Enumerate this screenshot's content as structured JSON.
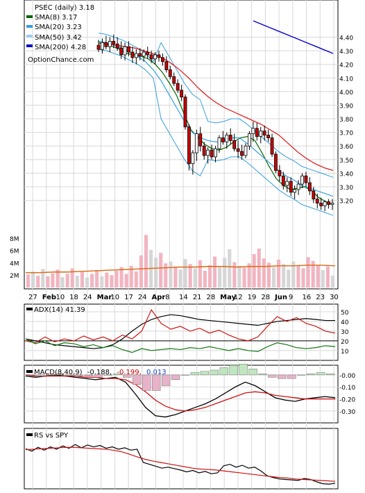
{
  "chart_data": [
    {
      "type": "candlestick",
      "title": "PSEC (daily) 3.18",
      "watermark": "OptionChance.com",
      "x_labels": [
        "27",
        "Feb",
        "10",
        "18",
        "24",
        "Mar",
        "10",
        "17",
        "24",
        "Apr",
        "8",
        "14",
        "21",
        "28",
        "May",
        "12",
        "19",
        "28",
        "Jun",
        "9",
        "16",
        "23",
        "30"
      ],
      "ylim": [
        3.05,
        4.52
      ],
      "y_ticks": [
        "4.40",
        "4.30",
        "4.20",
        "4.10",
        "4.00",
        "3.90",
        "3.80",
        "3.70",
        "3.60",
        "3.50",
        "3.40",
        "3.30",
        "3.20"
      ],
      "volume_ticks": [
        "8M",
        "6M",
        "4M",
        "2M"
      ],
      "volume_ylim": [
        0,
        10
      ],
      "legend": [
        {
          "label": "SMA(8) 3.17",
          "color": "#006600"
        },
        {
          "label": "SMA(20) 3.23",
          "color": "#33a0dd"
        },
        {
          "label": "SMA(50) 3.42",
          "color": "#dd1111"
        },
        {
          "label": "SMA(200) 4.28",
          "color": "#0000cc"
        }
      ],
      "candles": [
        {
          "o": 4.34,
          "h": 4.38,
          "l": 4.29,
          "c": 4.31
        },
        {
          "o": 4.31,
          "h": 4.39,
          "l": 4.28,
          "c": 4.36
        },
        {
          "o": 4.36,
          "h": 4.41,
          "l": 4.31,
          "c": 4.33
        },
        {
          "o": 4.33,
          "h": 4.4,
          "l": 4.29,
          "c": 4.37
        },
        {
          "o": 4.37,
          "h": 4.42,
          "l": 4.32,
          "c": 4.35
        },
        {
          "o": 4.35,
          "h": 4.4,
          "l": 4.3,
          "c": 4.32
        },
        {
          "o": 4.32,
          "h": 4.37,
          "l": 4.24,
          "c": 4.27
        },
        {
          "o": 4.27,
          "h": 4.36,
          "l": 4.23,
          "c": 4.33
        },
        {
          "o": 4.33,
          "h": 4.37,
          "l": 4.26,
          "c": 4.29
        },
        {
          "o": 4.29,
          "h": 4.33,
          "l": 4.21,
          "c": 4.25
        },
        {
          "o": 4.25,
          "h": 4.31,
          "l": 4.2,
          "c": 4.28
        },
        {
          "o": 4.28,
          "h": 4.32,
          "l": 4.23,
          "c": 4.26
        },
        {
          "o": 4.26,
          "h": 4.31,
          "l": 4.22,
          "c": 4.29
        },
        {
          "o": 4.29,
          "h": 4.33,
          "l": 4.24,
          "c": 4.27
        },
        {
          "o": 4.27,
          "h": 4.3,
          "l": 4.21,
          "c": 4.24
        },
        {
          "o": 4.24,
          "h": 4.29,
          "l": 4.2,
          "c": 4.27
        },
        {
          "o": 4.27,
          "h": 4.3,
          "l": 4.22,
          "c": 4.25
        },
        {
          "o": 4.25,
          "h": 4.28,
          "l": 4.19,
          "c": 4.22
        },
        {
          "o": 4.22,
          "h": 4.26,
          "l": 4.14,
          "c": 4.16
        },
        {
          "o": 4.16,
          "h": 4.19,
          "l": 4.09,
          "c": 4.11
        },
        {
          "o": 4.11,
          "h": 4.14,
          "l": 4.04,
          "c": 4.06
        },
        {
          "o": 4.06,
          "h": 4.09,
          "l": 3.99,
          "c": 4.01
        },
        {
          "o": 4.01,
          "h": 4.05,
          "l": 3.93,
          "c": 3.96
        },
        {
          "o": 3.96,
          "h": 3.98,
          "l": 3.72,
          "c": 3.74
        },
        {
          "o": 3.74,
          "h": 3.76,
          "l": 3.42,
          "c": 3.47
        },
        {
          "o": 3.47,
          "h": 3.57,
          "l": 3.39,
          "c": 3.55
        },
        {
          "o": 3.55,
          "h": 3.72,
          "l": 3.49,
          "c": 3.69
        },
        {
          "o": 3.69,
          "h": 3.74,
          "l": 3.56,
          "c": 3.6
        },
        {
          "o": 3.6,
          "h": 3.63,
          "l": 3.5,
          "c": 3.53
        },
        {
          "o": 3.53,
          "h": 3.59,
          "l": 3.47,
          "c": 3.57
        },
        {
          "o": 3.57,
          "h": 3.61,
          "l": 3.5,
          "c": 3.52
        },
        {
          "o": 3.52,
          "h": 3.6,
          "l": 3.48,
          "c": 3.58
        },
        {
          "o": 3.58,
          "h": 3.68,
          "l": 3.55,
          "c": 3.66
        },
        {
          "o": 3.66,
          "h": 3.71,
          "l": 3.61,
          "c": 3.63
        },
        {
          "o": 3.63,
          "h": 3.7,
          "l": 3.58,
          "c": 3.68
        },
        {
          "o": 3.68,
          "h": 3.73,
          "l": 3.61,
          "c": 3.64
        },
        {
          "o": 3.64,
          "h": 3.69,
          "l": 3.56,
          "c": 3.58
        },
        {
          "o": 3.58,
          "h": 3.64,
          "l": 3.51,
          "c": 3.56
        },
        {
          "o": 3.56,
          "h": 3.61,
          "l": 3.5,
          "c": 3.53
        },
        {
          "o": 3.53,
          "h": 3.62,
          "l": 3.51,
          "c": 3.6
        },
        {
          "o": 3.6,
          "h": 3.71,
          "l": 3.57,
          "c": 3.69
        },
        {
          "o": 3.69,
          "h": 3.78,
          "l": 3.63,
          "c": 3.73
        },
        {
          "o": 3.73,
          "h": 3.77,
          "l": 3.64,
          "c": 3.67
        },
        {
          "o": 3.67,
          "h": 3.74,
          "l": 3.62,
          "c": 3.71
        },
        {
          "o": 3.71,
          "h": 3.75,
          "l": 3.64,
          "c": 3.68
        },
        {
          "o": 3.68,
          "h": 3.72,
          "l": 3.63,
          "c": 3.66
        },
        {
          "o": 3.66,
          "h": 3.69,
          "l": 3.52,
          "c": 3.54
        },
        {
          "o": 3.54,
          "h": 3.56,
          "l": 3.4,
          "c": 3.42
        },
        {
          "o": 3.42,
          "h": 3.46,
          "l": 3.34,
          "c": 3.38
        },
        {
          "o": 3.38,
          "h": 3.41,
          "l": 3.28,
          "c": 3.31
        },
        {
          "o": 3.31,
          "h": 3.37,
          "l": 3.26,
          "c": 3.34
        },
        {
          "o": 3.34,
          "h": 3.37,
          "l": 3.23,
          "c": 3.26
        },
        {
          "o": 3.26,
          "h": 3.31,
          "l": 3.21,
          "c": 3.28
        },
        {
          "o": 3.28,
          "h": 3.35,
          "l": 3.24,
          "c": 3.32
        },
        {
          "o": 3.32,
          "h": 3.4,
          "l": 3.29,
          "c": 3.38
        },
        {
          "o": 3.38,
          "h": 3.41,
          "l": 3.3,
          "c": 3.33
        },
        {
          "o": 3.33,
          "h": 3.37,
          "l": 3.24,
          "c": 3.27
        },
        {
          "o": 3.27,
          "h": 3.3,
          "l": 3.18,
          "c": 3.21
        },
        {
          "o": 3.21,
          "h": 3.25,
          "l": 3.14,
          "c": 3.18
        },
        {
          "o": 3.18,
          "h": 3.22,
          "l": 3.13,
          "c": 3.16
        },
        {
          "o": 3.16,
          "h": 3.2,
          "l": 3.12,
          "c": 3.19
        },
        {
          "o": 3.19,
          "h": 3.21,
          "l": 3.14,
          "c": 3.17
        },
        {
          "o": 3.17,
          "h": 3.21,
          "l": 3.13,
          "c": 3.18
        }
      ],
      "volume_millions": [
        2.1,
        2.6,
        1.9,
        3.0,
        1.8,
        2.3,
        2.9,
        1.7,
        2.2,
        3.1,
        1.9,
        2.5,
        1.6,
        2.2,
        2.8,
        1.8,
        2.4,
        2.0,
        2.7,
        3.3,
        2.2,
        3.5,
        2.6,
        5.2,
        8.5,
        6.1,
        4.8,
        5.6,
        3.9,
        4.2,
        3.4,
        2.9,
        4.6,
        3.8,
        3.1,
        4.4,
        2.7,
        3.6,
        5.0,
        3.3,
        4.8,
        6.2,
        4.1,
        3.5,
        3.2,
        3.9,
        5.4,
        6.3,
        4.7,
        4.0,
        3.3,
        4.5,
        3.8,
        2.9,
        4.2,
        3.6,
        3.1,
        4.9,
        4.3,
        3.6,
        2.8,
        3.4,
        1.9
      ],
      "volume_avg_millions": [
        2.4,
        2.4,
        2.5,
        2.5,
        2.6,
        2.7,
        2.8,
        2.9,
        3.0,
        3.1,
        3.2,
        3.3,
        3.3,
        3.4,
        3.4,
        3.3,
        3.4,
        3.4,
        3.5,
        3.5,
        3.6,
        3.6,
        3.5
      ],
      "series": [
        {
          "name": "SMA(8)",
          "color": "#006600",
          "values": [
            4.36,
            4.35,
            4.33,
            4.31,
            4.28,
            4.27,
            4.26,
            4.24,
            4.2,
            4.14,
            4.06,
            3.97,
            3.84,
            3.72,
            3.66,
            3.61,
            3.58,
            3.57,
            3.59,
            3.63,
            3.66,
            3.67,
            3.64,
            3.55,
            3.45,
            3.36,
            3.31,
            3.28,
            3.29,
            3.3,
            3.27,
            3.22,
            3.19,
            3.17
          ]
        },
        {
          "name": "SMA(20)",
          "color": "#33a0dd",
          "values": [
            4.37,
            4.36,
            4.34,
            4.32,
            4.29,
            4.26,
            4.22,
            4.16,
            4.08,
            3.98,
            3.88,
            3.78,
            3.7,
            3.66,
            3.64,
            3.63,
            3.64,
            3.66,
            3.66,
            3.62,
            3.57,
            3.52,
            3.47,
            3.42,
            3.38,
            3.35,
            3.31,
            3.29,
            3.27,
            3.25,
            3.23
          ]
        },
        {
          "name": "SMA(50)",
          "color": "#dd1111",
          "values": [
            4.35,
            4.35,
            4.34,
            4.33,
            4.32,
            4.3,
            4.28,
            4.25,
            4.21,
            4.16,
            4.1,
            4.03,
            3.97,
            3.92,
            3.88,
            3.85,
            3.82,
            3.79,
            3.76,
            3.72,
            3.68,
            3.62,
            3.56,
            3.51,
            3.47,
            3.44,
            3.42
          ]
        },
        {
          "name": "SMA(200)",
          "color": "#0000cc",
          "values": [
            4.52,
            4.48,
            4.44,
            4.4,
            4.36,
            4.32,
            4.28
          ]
        }
      ]
    },
    {
      "type": "line",
      "title": "ADX(14) 41.39",
      "y_ticks": [
        "50",
        "40",
        "30",
        "20",
        "10"
      ],
      "ylim": [
        2,
        55
      ],
      "series": [
        {
          "name": "ADX",
          "color": "#000000",
          "values": [
            22,
            20,
            18,
            16,
            15,
            14,
            13,
            12,
            13,
            16,
            22,
            30,
            37,
            42,
            45,
            47,
            46,
            44,
            42,
            41,
            40,
            39,
            38,
            37,
            36,
            38,
            40,
            41,
            42,
            43,
            42,
            41,
            41
          ]
        },
        {
          "name": "+DI",
          "color": "#cc1111",
          "values": [
            20,
            18,
            24,
            19,
            22,
            20,
            25,
            21,
            24,
            20,
            26,
            22,
            30,
            52,
            38,
            32,
            35,
            30,
            33,
            28,
            31,
            26,
            22,
            20,
            24,
            35,
            45,
            40,
            44,
            38,
            35,
            30,
            28
          ]
        },
        {
          "name": "-DI",
          "color": "#117711",
          "values": [
            22,
            17,
            20,
            15,
            18,
            17,
            14,
            16,
            13,
            15,
            11,
            8,
            12,
            10,
            11,
            12,
            11,
            13,
            12,
            14,
            12,
            10,
            12,
            10,
            9,
            14,
            18,
            16,
            13,
            12,
            13,
            15,
            14
          ]
        }
      ],
      "threshold": 20
    },
    {
      "type": "line",
      "title": "MACD(8,40,9) -0.188, -0.199, 0.013",
      "title_parts": [
        "MACD(8,40,9)",
        "-0.188,",
        "-0.199,",
        "0.013"
      ],
      "y_ticks": [
        "-0.00",
        "-0.10",
        "-0.20",
        "-0.30"
      ],
      "ylim": [
        -0.37,
        0.04
      ],
      "series": [
        {
          "name": "MACD",
          "color": "#000000",
          "values": [
            -0.01,
            -0.02,
            -0.01,
            0.0,
            -0.01,
            -0.02,
            -0.03,
            -0.04,
            -0.03,
            -0.02,
            -0.06,
            -0.16,
            -0.27,
            -0.34,
            -0.35,
            -0.33,
            -0.3,
            -0.27,
            -0.24,
            -0.2,
            -0.15,
            -0.1,
            -0.06,
            -0.09,
            -0.14,
            -0.19,
            -0.21,
            -0.22,
            -0.2,
            -0.19,
            -0.18,
            -0.19
          ]
        },
        {
          "name": "Signal",
          "color": "#cc1111",
          "values": [
            0.0,
            -0.01,
            -0.01,
            -0.01,
            -0.01,
            -0.01,
            -0.02,
            -0.02,
            -0.03,
            -0.03,
            -0.04,
            -0.08,
            -0.14,
            -0.21,
            -0.26,
            -0.29,
            -0.3,
            -0.29,
            -0.27,
            -0.24,
            -0.21,
            -0.18,
            -0.15,
            -0.14,
            -0.15,
            -0.17,
            -0.18,
            -0.19,
            -0.2,
            -0.2,
            -0.2,
            -0.2
          ]
        },
        {
          "name": "Histogram",
          "color": "#55aa55",
          "values": [
            0.0,
            -0.01,
            0.0,
            0.01,
            0.0,
            -0.01,
            -0.01,
            -0.02,
            0.0,
            0.01,
            -0.02,
            -0.08,
            -0.13,
            -0.13,
            -0.09,
            -0.04,
            0.0,
            0.02,
            0.03,
            0.04,
            0.06,
            0.08,
            0.09,
            0.05,
            0.01,
            -0.02,
            -0.03,
            -0.03,
            0.0,
            0.01,
            0.02,
            0.01
          ]
        }
      ]
    },
    {
      "type": "line",
      "title": "RS vs SPY",
      "ylim": [
        0,
        1
      ],
      "series": [
        {
          "name": "RS",
          "color": "#000000",
          "values": [
            0.79,
            0.74,
            0.82,
            0.76,
            0.83,
            0.78,
            0.85,
            0.8,
            0.88,
            0.81,
            0.87,
            0.83,
            0.86,
            0.8,
            0.83,
            0.78,
            0.81,
            0.76,
            0.78,
            0.5,
            0.46,
            0.42,
            0.38,
            0.4,
            0.37,
            0.34,
            0.3,
            0.33,
            0.28,
            0.31,
            0.26,
            0.28,
            0.43,
            0.46,
            0.4,
            0.44,
            0.38,
            0.4,
            0.32,
            0.22,
            0.18,
            0.15,
            0.14,
            0.13,
            0.12,
            0.16,
            0.14,
            0.09,
            0.05,
            0.04,
            0.06
          ]
        },
        {
          "name": "RS average",
          "color": "#cc1111",
          "values": [
            0.77,
            0.78,
            0.79,
            0.8,
            0.81,
            0.82,
            0.82,
            0.81,
            0.8,
            0.79,
            0.78,
            0.76,
            0.73,
            0.68,
            0.62,
            0.57,
            0.53,
            0.5,
            0.47,
            0.44,
            0.41,
            0.38,
            0.36,
            0.35,
            0.34,
            0.32,
            0.3,
            0.28,
            0.26,
            0.24,
            0.22,
            0.2,
            0.18,
            0.17,
            0.15,
            0.14,
            0.13,
            0.12,
            0.11,
            0.1
          ]
        }
      ]
    }
  ]
}
